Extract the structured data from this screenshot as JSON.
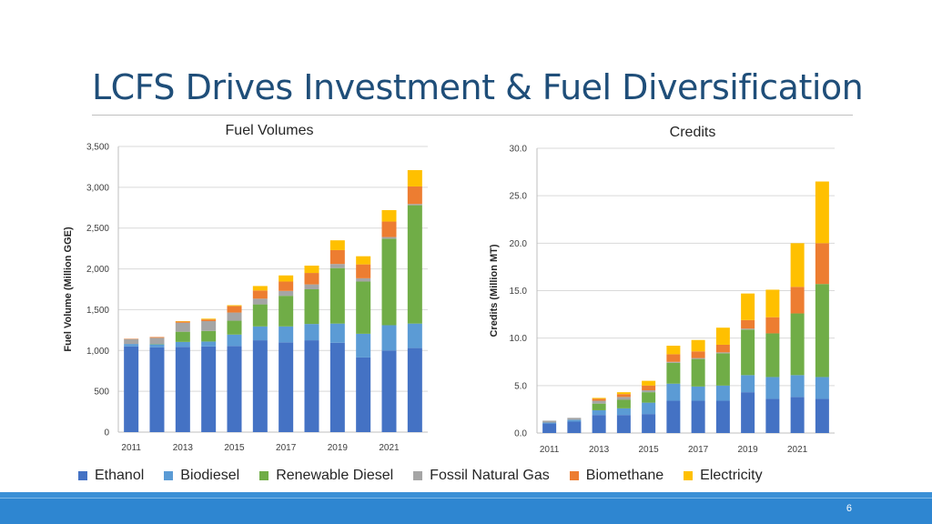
{
  "slide": {
    "title": "LCFS Drives Investment & Fuel Diversification",
    "page_number": "6"
  },
  "colors": {
    "Ethanol": "#4472c4",
    "Biodiesel": "#5b9bd5",
    "Renewable Diesel": "#70ad47",
    "Fossil Natural Gas": "#a5a5a5",
    "Biomethane": "#ed7d31",
    "Electricity": "#ffc000"
  },
  "legend": [
    "Ethanol",
    "Biodiesel",
    "Renewable Diesel",
    "Fossil Natural Gas",
    "Biomethane",
    "Electricity"
  ],
  "chart_data": [
    {
      "type": "bar",
      "stacked": true,
      "title": "Fuel Volumes",
      "ylabel": "Fuel Volume (Million GGE)",
      "xlabel": "",
      "ylim": [
        0,
        3500
      ],
      "yticks": [
        0,
        500,
        1000,
        1500,
        2000,
        2500,
        3000,
        3500
      ],
      "ytick_labels": [
        "0",
        "500",
        "1,000",
        "1,500",
        "2,000",
        "2,500",
        "3,000",
        "3,500"
      ],
      "grid": true,
      "categories": [
        2011,
        2012,
        2013,
        2014,
        2015,
        2016,
        2017,
        2018,
        2019,
        2020,
        2021,
        2022
      ],
      "xtick_labels": [
        "2011",
        "",
        "2013",
        "",
        "2015",
        "",
        "2017",
        "",
        "2019",
        "",
        "2021",
        ""
      ],
      "series": [
        {
          "name": "Ethanol",
          "values": [
            1050,
            1040,
            1045,
            1050,
            1055,
            1125,
            1100,
            1125,
            1095,
            915,
            1000,
            1030
          ]
        },
        {
          "name": "Biodiesel",
          "values": [
            30,
            35,
            60,
            60,
            140,
            170,
            195,
            200,
            235,
            290,
            310,
            300
          ]
        },
        {
          "name": "Renewable Diesel",
          "values": [
            0,
            5,
            125,
            130,
            170,
            270,
            375,
            425,
            680,
            640,
            1060,
            1450
          ]
        },
        {
          "name": "Fossil Natural Gas",
          "values": [
            60,
            75,
            110,
            120,
            100,
            70,
            60,
            60,
            50,
            40,
            20,
            15
          ]
        },
        {
          "name": "Biomethane",
          "values": [
            5,
            10,
            15,
            20,
            80,
            100,
            115,
            140,
            170,
            170,
            190,
            215
          ]
        },
        {
          "name": "Electricity",
          "values": [
            0,
            0,
            5,
            10,
            10,
            55,
            75,
            90,
            120,
            100,
            140,
            200
          ]
        }
      ]
    },
    {
      "type": "bar",
      "stacked": true,
      "title": "Credits",
      "ylabel": "Credits (Million  MT)",
      "xlabel": "",
      "ylim": [
        0,
        30
      ],
      "yticks": [
        0,
        5,
        10,
        15,
        20,
        25,
        30
      ],
      "ytick_labels": [
        "0.0",
        "5.0",
        "10.0",
        "15.0",
        "20.0",
        "25.0",
        "30.0"
      ],
      "grid": true,
      "categories": [
        2011,
        2012,
        2013,
        2014,
        2015,
        2016,
        2017,
        2018,
        2019,
        2020,
        2021,
        2022
      ],
      "xtick_labels": [
        "2011",
        "",
        "2013",
        "",
        "2015",
        "",
        "2017",
        "",
        "2019",
        "",
        "2021",
        ""
      ],
      "series": [
        {
          "name": "Ethanol",
          "values": [
            1.0,
            1.2,
            1.9,
            1.9,
            2.0,
            3.4,
            3.4,
            3.4,
            4.3,
            3.6,
            3.8,
            3.6
          ]
        },
        {
          "name": "Biodiesel",
          "values": [
            0.1,
            0.2,
            0.5,
            0.7,
            1.2,
            1.8,
            1.5,
            1.6,
            1.8,
            2.3,
            2.3,
            2.3
          ]
        },
        {
          "name": "Renewable Diesel",
          "values": [
            0.0,
            0.0,
            0.7,
            0.9,
            1.1,
            2.2,
            2.9,
            3.4,
            4.8,
            4.6,
            6.5,
            9.8
          ]
        },
        {
          "name": "Fossil Natural Gas",
          "values": [
            0.2,
            0.2,
            0.3,
            0.3,
            0.2,
            0.1,
            0.1,
            0.1,
            0.1,
            0.0,
            0.0,
            0.0
          ]
        },
        {
          "name": "Biomethane",
          "values": [
            0.0,
            0.0,
            0.2,
            0.3,
            0.5,
            0.8,
            0.7,
            0.8,
            0.9,
            1.7,
            2.8,
            4.3
          ]
        },
        {
          "name": "Electricity",
          "values": [
            0.0,
            0.0,
            0.1,
            0.2,
            0.5,
            0.9,
            1.2,
            1.8,
            2.8,
            2.9,
            4.6,
            6.5
          ]
        }
      ]
    }
  ]
}
